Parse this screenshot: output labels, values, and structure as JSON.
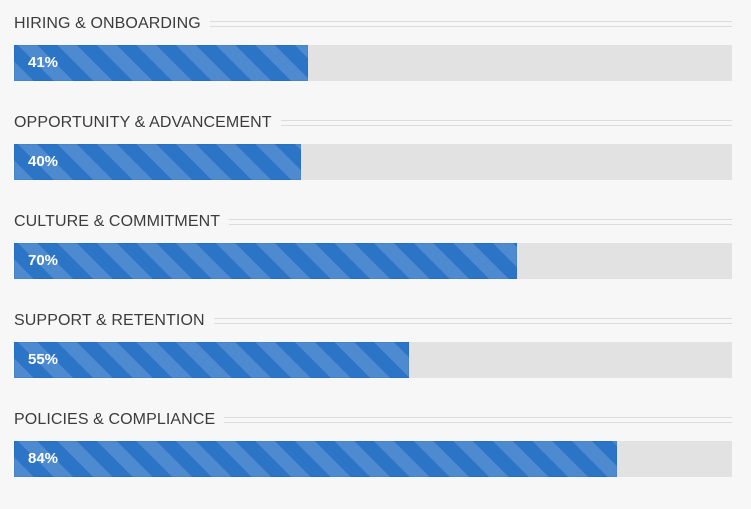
{
  "chart_data": {
    "type": "bar",
    "orientation": "horizontal",
    "categories": [
      "HIRING & ONBOARDING",
      "OPPORTUNITY & ADVANCEMENT",
      "CULTURE & COMMITMENT",
      "SUPPORT & RETENTION",
      "POLICIES & COMPLIANCE"
    ],
    "values": [
      41,
      40,
      70,
      55,
      84
    ],
    "value_labels": [
      "41%",
      "40%",
      "70%",
      "55%",
      "84%"
    ],
    "xlim": [
      0,
      100
    ],
    "unit": "%",
    "grid": false,
    "legend": "none"
  },
  "colors": {
    "bar_fill": "#2b74c6",
    "track": "#e2e2e2",
    "background": "#f7f7f7",
    "label_text": "#3c3c3c",
    "value_text": "#ffffff"
  }
}
